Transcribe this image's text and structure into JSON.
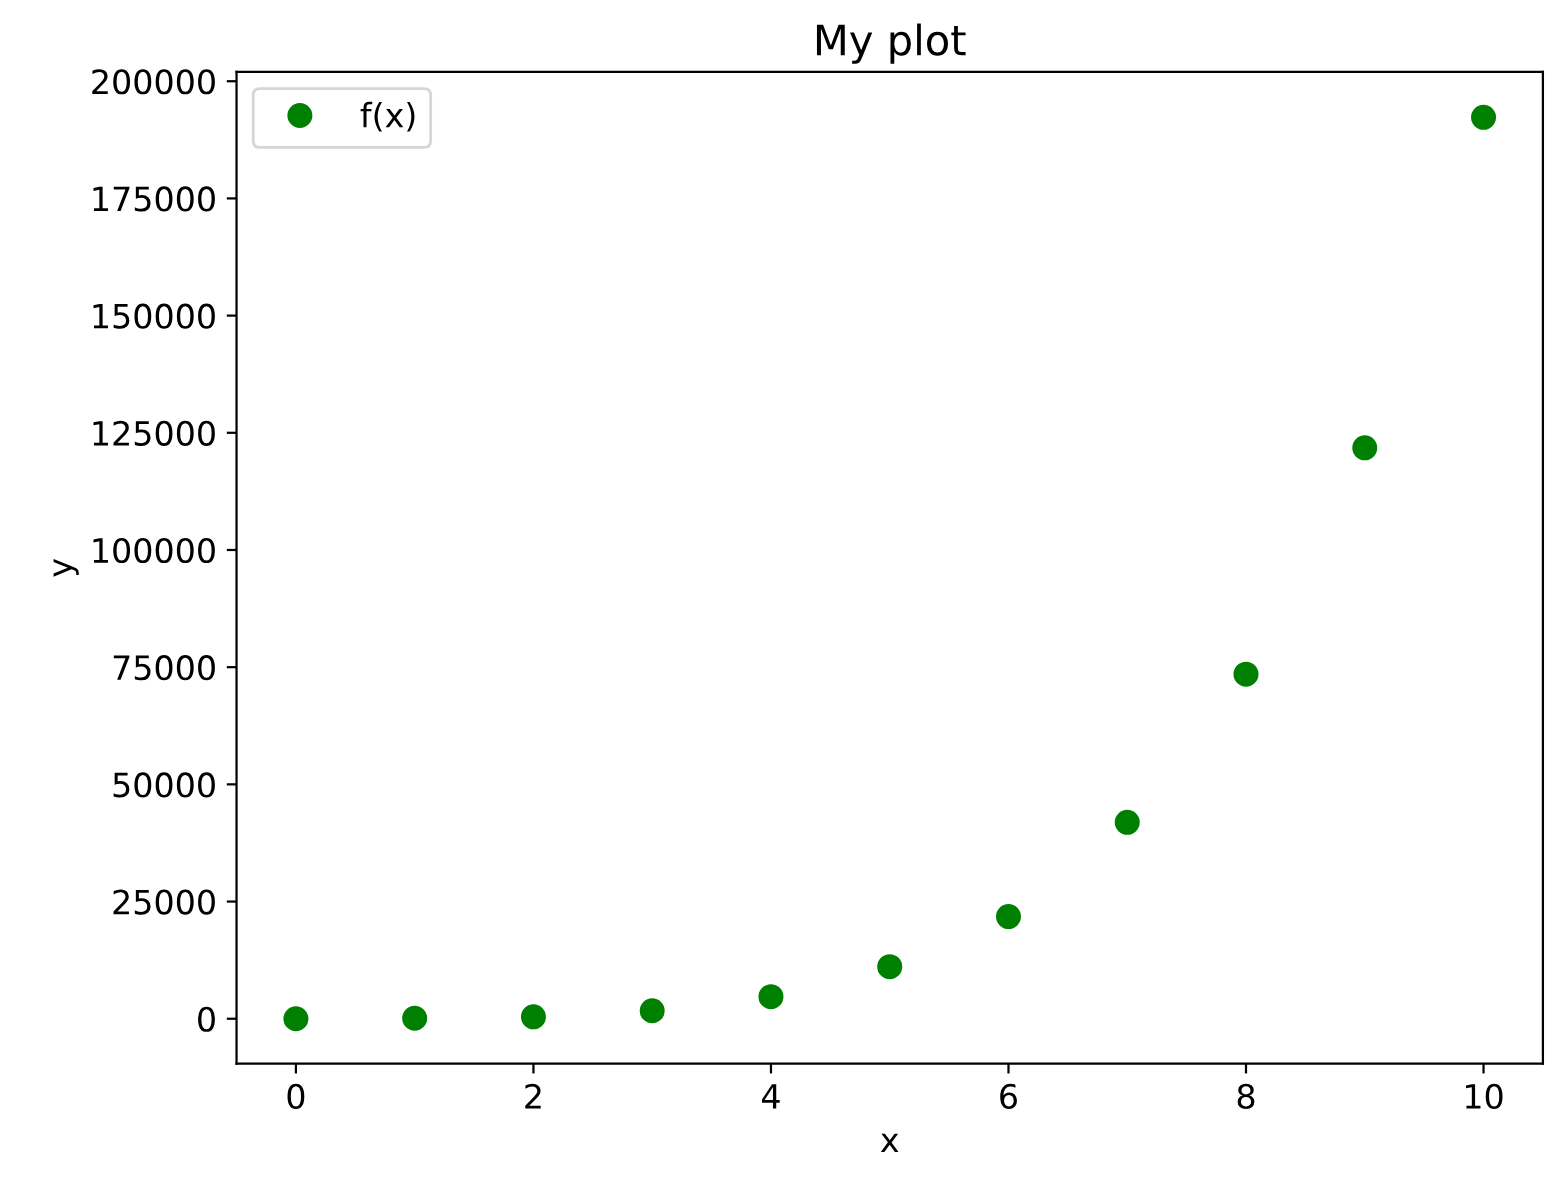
{
  "chart_data": {
    "type": "scatter",
    "title": "My plot",
    "xlabel": "x",
    "ylabel": "y",
    "x": [
      0,
      1,
      2,
      3,
      4,
      5,
      6,
      7,
      8,
      9,
      10
    ],
    "series": [
      {
        "name": "f(x)",
        "color": "#008000",
        "values": [
          0,
          100,
          400,
          1700,
          4700,
          11100,
          21800,
          41900,
          73500,
          121800,
          192300
        ]
      }
    ],
    "xlim": [
      -0.5,
      10.5
    ],
    "ylim": [
      -9600,
      202000
    ],
    "xticks": [
      0,
      2,
      4,
      6,
      8,
      10
    ],
    "yticks": [
      0,
      25000,
      50000,
      75000,
      100000,
      125000,
      150000,
      175000,
      200000
    ],
    "legend": "top left",
    "marker": "circle",
    "grid": false
  }
}
